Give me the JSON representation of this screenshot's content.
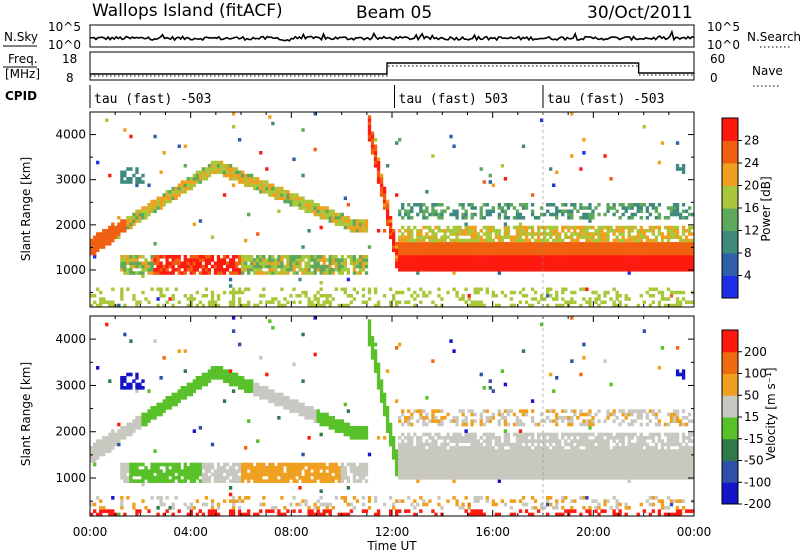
{
  "header": {
    "station": "Wallops Island (fitACF)",
    "beam": "Beam 05",
    "date": "30/Oct/2011"
  },
  "panels": {
    "nsky": {
      "left_label": "N.Sky",
      "right_label": "N.Search",
      "left_ticks": [
        "10^5",
        "10^0"
      ],
      "right_ticks": [
        "10^5",
        "10^0"
      ]
    },
    "freq": {
      "label_top": "Freq.",
      "label_unit": "[MHz]",
      "left_ticks": [
        "18",
        "8"
      ],
      "right_ticks": [
        "60",
        "0"
      ],
      "right_label": "Nave"
    },
    "cpid": {
      "label": "CPID",
      "segments": [
        {
          "start_hour": 0,
          "text": "tau (fast) -503"
        },
        {
          "start_hour": 12.1,
          "text": "tau (fast) 503"
        },
        {
          "start_hour": 18,
          "text": "tau (fast) -503"
        }
      ]
    }
  },
  "chart_data": [
    {
      "type": "heatmap",
      "title": "",
      "xlabel": "",
      "ylabel": "Slant Range [km]",
      "x_range_hours": [
        0,
        24
      ],
      "y_range_km": [
        180,
        4500
      ],
      "y_ticks": [
        1000,
        2000,
        3000,
        4000
      ],
      "colorbar": {
        "label": "Power [dB]",
        "ticks": [
          "4",
          "8",
          "12",
          "16",
          "20",
          "24",
          "28"
        ],
        "colors": [
          "#1e2ee6",
          "#2f5fa8",
          "#3f8a7d",
          "#5ea85c",
          "#a9c73a",
          "#f0a020",
          "#f06010",
          "#ff1a10"
        ]
      }
    },
    {
      "type": "heatmap",
      "title": "",
      "xlabel": "Time UT",
      "ylabel": "Slant Range [km]",
      "x_range_hours": [
        0,
        24
      ],
      "y_range_km": [
        180,
        4500
      ],
      "y_ticks": [
        1000,
        2000,
        3000,
        4000
      ],
      "x_ticks": [
        "00:00",
        "04:00",
        "08:00",
        "12:00",
        "16:00",
        "20:00",
        "00:00"
      ],
      "colorbar": {
        "label": "Velocity [m s⁻¹]",
        "ticks": [
          "200",
          "100",
          "50",
          "15",
          "-15",
          "-50",
          "-100",
          "-200"
        ],
        "colors": [
          "#1414c8",
          "#2f4fa8",
          "#2f7a4a",
          "#58c028",
          "#c8c8c0",
          "#f0a020",
          "#f06a10",
          "#ff1a10"
        ]
      }
    }
  ]
}
